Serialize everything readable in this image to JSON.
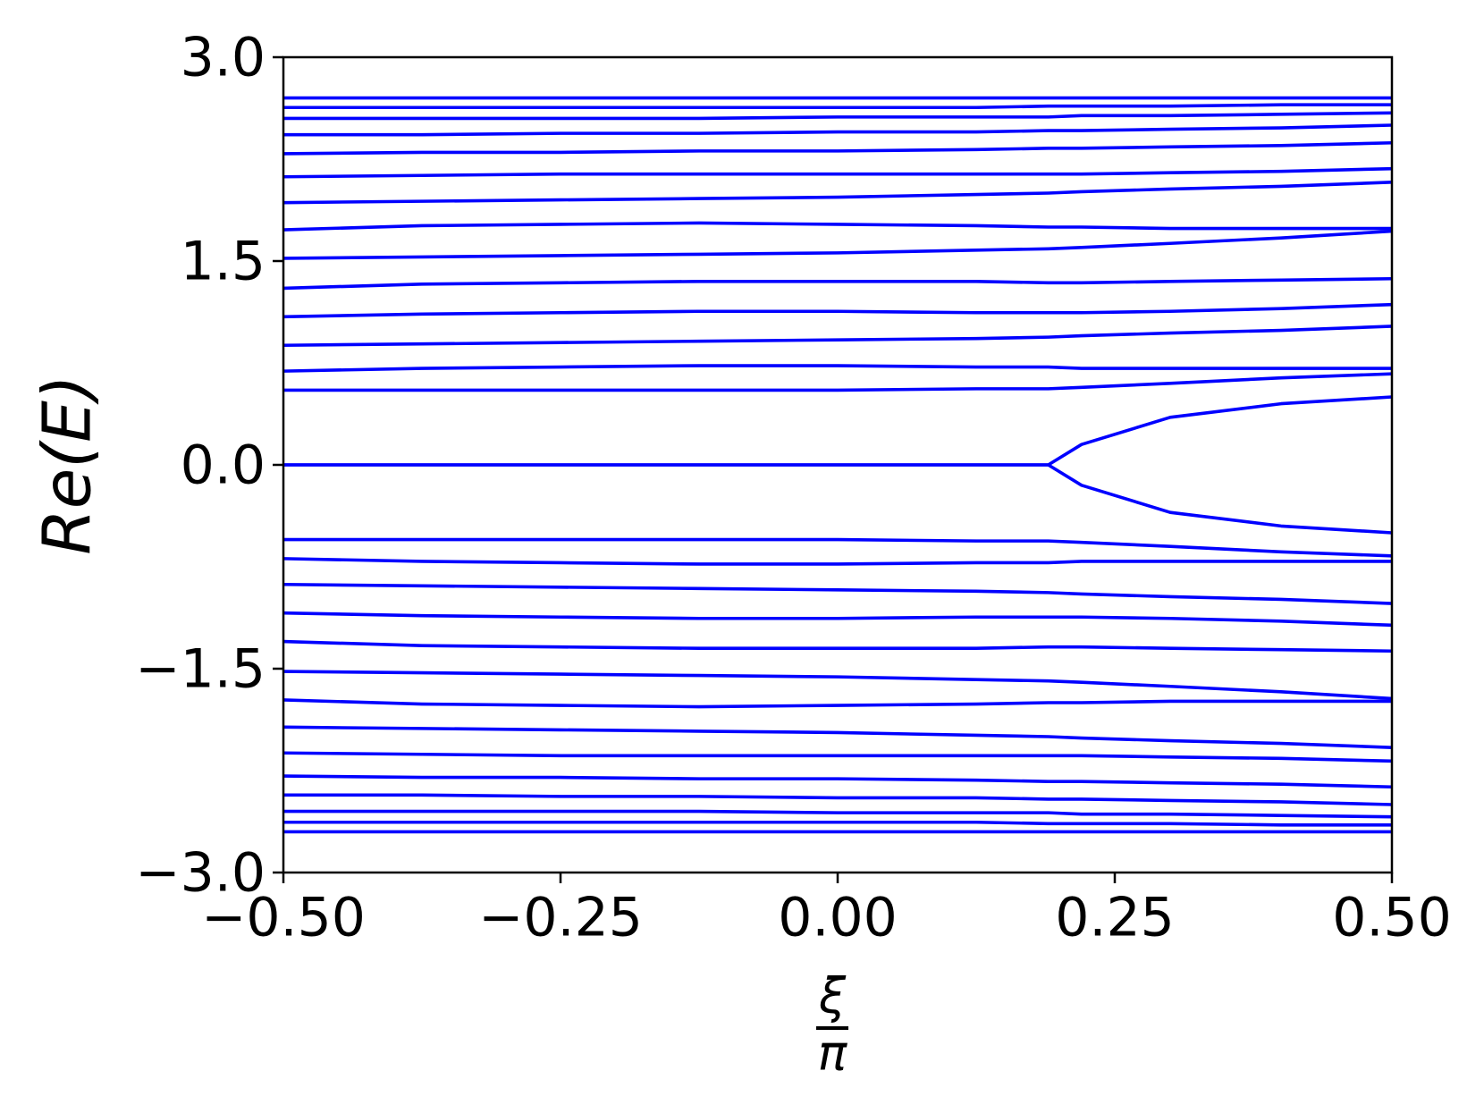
{
  "chart_data": {
    "type": "line",
    "ylabel": "Re(E)",
    "xlabel": {
      "numerator": "ξ",
      "denominator": "π"
    },
    "color": "#0000ff",
    "x": [
      -0.5,
      -0.375,
      -0.25,
      -0.125,
      0,
      0.125,
      0.19,
      0.22,
      0.3,
      0.4,
      0.5
    ],
    "xlim": [
      -0.5,
      0.5
    ],
    "xticks": [
      {
        "value": -0.5,
        "label": "−0.50"
      },
      {
        "value": -0.25,
        "label": "−0.25"
      },
      {
        "value": 0,
        "label": "0.00"
      },
      {
        "value": 0.25,
        "label": "0.25"
      },
      {
        "value": 0.5,
        "label": "0.50"
      }
    ],
    "ylim": [
      -3,
      3
    ],
    "yticks": [
      {
        "value": -3,
        "label": "−3.0"
      },
      {
        "value": -1.5,
        "label": "−1.5"
      },
      {
        "value": 0,
        "label": "0.0"
      },
      {
        "value": 1.5,
        "label": "1.5"
      },
      {
        "value": 3,
        "label": "3.0"
      }
    ],
    "series": [
      {
        "values": [
          2.7,
          2.7,
          2.7,
          2.7,
          2.7,
          2.7,
          2.7,
          2.7,
          2.7,
          2.7,
          2.7
        ]
      },
      {
        "values": [
          2.63,
          2.63,
          2.63,
          2.63,
          2.63,
          2.63,
          2.64,
          2.64,
          2.64,
          2.65,
          2.65
        ]
      },
      {
        "values": [
          2.55,
          2.55,
          2.55,
          2.55,
          2.56,
          2.56,
          2.56,
          2.57,
          2.57,
          2.58,
          2.59
        ]
      },
      {
        "values": [
          2.43,
          2.43,
          2.44,
          2.44,
          2.45,
          2.45,
          2.46,
          2.46,
          2.47,
          2.48,
          2.5
        ]
      },
      {
        "values": [
          2.29,
          2.3,
          2.3,
          2.31,
          2.31,
          2.32,
          2.33,
          2.33,
          2.34,
          2.35,
          2.37
        ]
      },
      {
        "values": [
          2.12,
          2.13,
          2.14,
          2.14,
          2.14,
          2.14,
          2.14,
          2.14,
          2.15,
          2.16,
          2.18
        ]
      },
      {
        "values": [
          1.93,
          1.94,
          1.95,
          1.96,
          1.97,
          1.99,
          2.0,
          2.01,
          2.03,
          2.05,
          2.08
        ]
      },
      {
        "values": [
          1.73,
          1.76,
          1.77,
          1.78,
          1.77,
          1.76,
          1.75,
          1.75,
          1.74,
          1.74,
          1.74
        ]
      },
      {
        "values": [
          1.52,
          1.53,
          1.54,
          1.55,
          1.56,
          1.58,
          1.59,
          1.6,
          1.63,
          1.67,
          1.72
        ]
      },
      {
        "values": [
          1.3,
          1.33,
          1.34,
          1.35,
          1.35,
          1.35,
          1.34,
          1.34,
          1.35,
          1.36,
          1.37
        ]
      },
      {
        "values": [
          1.09,
          1.11,
          1.12,
          1.13,
          1.13,
          1.12,
          1.12,
          1.12,
          1.13,
          1.15,
          1.18
        ]
      },
      {
        "values": [
          0.88,
          0.89,
          0.9,
          0.91,
          0.92,
          0.93,
          0.94,
          0.95,
          0.97,
          0.99,
          1.02
        ]
      },
      {
        "values": [
          0.69,
          0.71,
          0.72,
          0.73,
          0.73,
          0.72,
          0.72,
          0.71,
          0.71,
          0.71,
          0.71
        ]
      },
      {
        "values": [
          0.55,
          0.55,
          0.55,
          0.55,
          0.55,
          0.56,
          0.56,
          0.57,
          0.6,
          0.64,
          0.67
        ]
      },
      {
        "values": [
          0,
          0,
          0,
          0,
          0,
          0,
          0,
          0.15,
          0.35,
          0.45,
          0.5
        ]
      },
      {
        "values": [
          0,
          0,
          0,
          0,
          0,
          0,
          0,
          -0.15,
          -0.35,
          -0.45,
          -0.5
        ]
      },
      {
        "values": [
          -0.55,
          -0.55,
          -0.55,
          -0.55,
          -0.55,
          -0.56,
          -0.56,
          -0.57,
          -0.6,
          -0.64,
          -0.67
        ]
      },
      {
        "values": [
          -0.69,
          -0.71,
          -0.72,
          -0.73,
          -0.73,
          -0.72,
          -0.72,
          -0.71,
          -0.71,
          -0.71,
          -0.71
        ]
      },
      {
        "values": [
          -0.88,
          -0.89,
          -0.9,
          -0.91,
          -0.92,
          -0.93,
          -0.94,
          -0.95,
          -0.97,
          -0.99,
          -1.02
        ]
      },
      {
        "values": [
          -1.09,
          -1.11,
          -1.12,
          -1.13,
          -1.13,
          -1.12,
          -1.12,
          -1.12,
          -1.13,
          -1.15,
          -1.18
        ]
      },
      {
        "values": [
          -1.3,
          -1.33,
          -1.34,
          -1.35,
          -1.35,
          -1.35,
          -1.34,
          -1.34,
          -1.35,
          -1.36,
          -1.37
        ]
      },
      {
        "values": [
          -1.52,
          -1.53,
          -1.54,
          -1.55,
          -1.56,
          -1.58,
          -1.59,
          -1.6,
          -1.63,
          -1.67,
          -1.72
        ]
      },
      {
        "values": [
          -1.73,
          -1.76,
          -1.77,
          -1.78,
          -1.77,
          -1.76,
          -1.75,
          -1.75,
          -1.74,
          -1.74,
          -1.74
        ]
      },
      {
        "values": [
          -1.93,
          -1.94,
          -1.95,
          -1.96,
          -1.97,
          -1.99,
          -2.0,
          -2.01,
          -2.03,
          -2.05,
          -2.08
        ]
      },
      {
        "values": [
          -2.12,
          -2.13,
          -2.14,
          -2.14,
          -2.14,
          -2.14,
          -2.14,
          -2.14,
          -2.15,
          -2.16,
          -2.18
        ]
      },
      {
        "values": [
          -2.29,
          -2.3,
          -2.3,
          -2.31,
          -2.31,
          -2.32,
          -2.33,
          -2.33,
          -2.34,
          -2.35,
          -2.37
        ]
      },
      {
        "values": [
          -2.43,
          -2.43,
          -2.44,
          -2.44,
          -2.45,
          -2.45,
          -2.46,
          -2.46,
          -2.47,
          -2.48,
          -2.5
        ]
      },
      {
        "values": [
          -2.55,
          -2.55,
          -2.55,
          -2.55,
          -2.56,
          -2.56,
          -2.56,
          -2.57,
          -2.57,
          -2.58,
          -2.59
        ]
      },
      {
        "values": [
          -2.63,
          -2.63,
          -2.63,
          -2.63,
          -2.63,
          -2.63,
          -2.64,
          -2.64,
          -2.64,
          -2.65,
          -2.65
        ]
      },
      {
        "values": [
          -2.7,
          -2.7,
          -2.7,
          -2.7,
          -2.7,
          -2.7,
          -2.7,
          -2.7,
          -2.7,
          -2.7,
          -2.7
        ]
      }
    ]
  }
}
